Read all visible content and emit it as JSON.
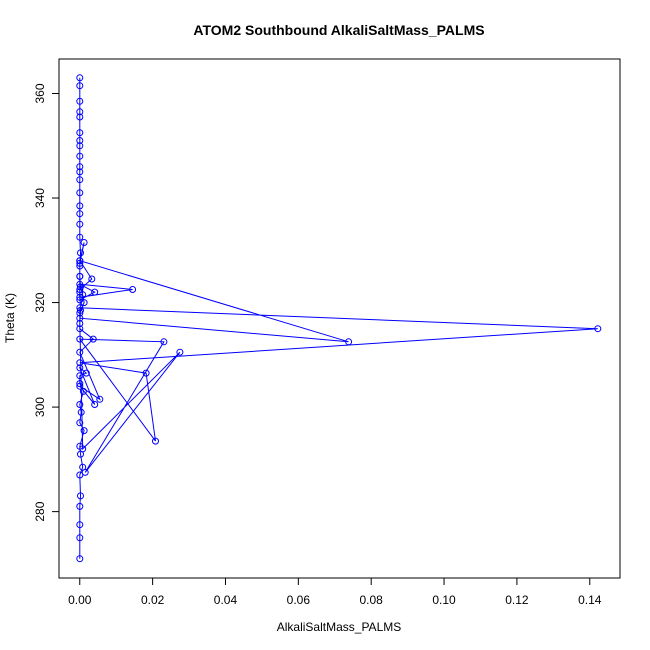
{
  "chart_data": {
    "type": "line",
    "title": "ATOM2 Southbound AlkaliSaltMass_PALMS",
    "xlabel": "AlkaliSaltMass_PALMS",
    "ylabel": "Theta (K)",
    "xlim": [
      -0.0057,
      0.1483
    ],
    "ylim": [
      267.3,
      366.6
    ],
    "x_ticks": [
      0.0,
      0.02,
      0.04,
      0.06,
      0.08,
      0.1,
      0.12,
      0.14
    ],
    "x_tick_labels": [
      "0.00",
      "0.02",
      "0.04",
      "0.06",
      "0.08",
      "0.10",
      "0.12",
      "0.14"
    ],
    "y_ticks": [
      280,
      300,
      320,
      340,
      360
    ],
    "y_tick_labels": [
      "280",
      "300",
      "320",
      "340",
      "360"
    ],
    "grid": false,
    "legend": "none",
    "line_color": "#0000ff",
    "marker": "open-circle",
    "series": [
      {
        "x": [
          0.0,
          0.0,
          0.0,
          0.0,
          0.0002,
          0.0,
          0.0008,
          0.0002,
          0.0,
          0.0012,
          0.0,
          0.0004,
          0.0,
          0.001,
          0.0,
          0.0,
          0.0018,
          0.0,
          0.0041,
          0.0,
          0.0055,
          0.0,
          0.0037,
          0.0,
          0.0,
          0.0012,
          0.0008,
          0.0002,
          0.0,
          0.0,
          0.0012,
          0.0,
          0.0033,
          0.0,
          0.0,
          0.0145,
          0.0,
          0.0041,
          0.0,
          0.0,
          0.0738,
          0.0,
          0.0,
          0.1422,
          0.0,
          0.0182,
          0.0208,
          0.0,
          0.0231,
          0.0015,
          0.0275,
          0.0008,
          0.0,
          0.0002,
          0.0,
          0.0,
          0.0,
          0.0002,
          0.0,
          0.0,
          0.0,
          0.0,
          0.0,
          0.0,
          0.0,
          0.0,
          0.0,
          0.0,
          0.0,
          0.0,
          0.0,
          0.0,
          0.0,
          0.0,
          0.0
        ],
        "y": [
          271.0,
          275.0,
          277.5,
          281.0,
          283.0,
          287.0,
          288.5,
          291.0,
          292.5,
          295.5,
          297.0,
          299.0,
          300.5,
          303.0,
          304.5,
          306.0,
          306.5,
          307.5,
          300.5,
          304.0,
          301.5,
          310.5,
          313.0,
          315.0,
          318.0,
          320.0,
          321.5,
          323.0,
          325.0,
          327.5,
          331.5,
          328.0,
          324.5,
          322.5,
          321.0,
          322.5,
          323.5,
          322.0,
          320.5,
          328.0,
          312.5,
          317.0,
          319.0,
          315.0,
          308.5,
          306.5,
          293.5,
          313.0,
          312.5,
          287.5,
          310.5,
          292.0,
          316.0,
          318.5,
          322.0,
          325.0,
          327.0,
          329.5,
          332.5,
          335.0,
          337.0,
          338.5,
          341.0,
          343.5,
          345.0,
          346.0,
          348.0,
          350.0,
          351.0,
          352.5,
          355.5,
          356.5,
          358.5,
          361.5,
          363.0
        ]
      }
    ]
  }
}
